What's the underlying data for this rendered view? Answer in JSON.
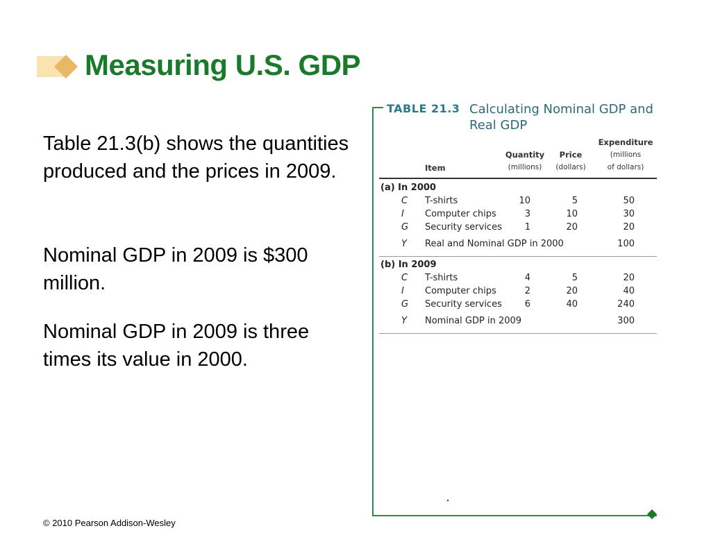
{
  "title": "Measuring U.S. GDP",
  "body": {
    "p1": "Table 21.3(b) shows the quantities produced and the prices in 2009.",
    "p2": "Nominal GDP in 2009 is $300 million.",
    "p3": "Nominal GDP in 2009 is three times its value in 2000."
  },
  "footer": "© 2010 Pearson Addison-Wesley",
  "table": {
    "number": "TABLE 21.3",
    "caption": "Calculating Nominal GDP and Real GDP",
    "headers": {
      "item": "Item",
      "quantity": "Quantity",
      "quantity_unit": "(millions)",
      "price": "Price",
      "price_unit": "(dollars)",
      "expenditure": "Expenditure",
      "expenditure_unit1": "(millions",
      "expenditure_unit2": "of dollars)"
    },
    "sections": [
      {
        "label": "(a) In 2000",
        "rows": [
          {
            "symbol": "C",
            "item": "T-shirts",
            "quantity": "10",
            "price": "5",
            "expenditure": "50"
          },
          {
            "symbol": "I",
            "item": "Computer chips",
            "quantity": "3",
            "price": "10",
            "expenditure": "30"
          },
          {
            "symbol": "G",
            "item": "Security services",
            "quantity": "1",
            "price": "20",
            "expenditure": "20"
          }
        ],
        "total": {
          "symbol": "Y",
          "item": "Real and Nominal GDP in 2000",
          "expenditure": "100"
        }
      },
      {
        "label": "(b) In 2009",
        "rows": [
          {
            "symbol": "C",
            "item": "T-shirts",
            "quantity": "4",
            "price": "5",
            "expenditure": "20"
          },
          {
            "symbol": "I",
            "item": "Computer chips",
            "quantity": "2",
            "price": "20",
            "expenditure": "40"
          },
          {
            "symbol": "G",
            "item": "Security services",
            "quantity": "6",
            "price": "40",
            "expenditure": "240"
          }
        ],
        "total": {
          "symbol": "Y",
          "item": "Nominal GDP in 2009",
          "expenditure": "300"
        }
      }
    ]
  },
  "colors": {
    "title": "#1a7a2a",
    "frame": "#2a8a4a",
    "table_heading": "#2a7a8a",
    "diamond_light": "#f8e0a8",
    "diamond_dark": "#e8b860"
  }
}
